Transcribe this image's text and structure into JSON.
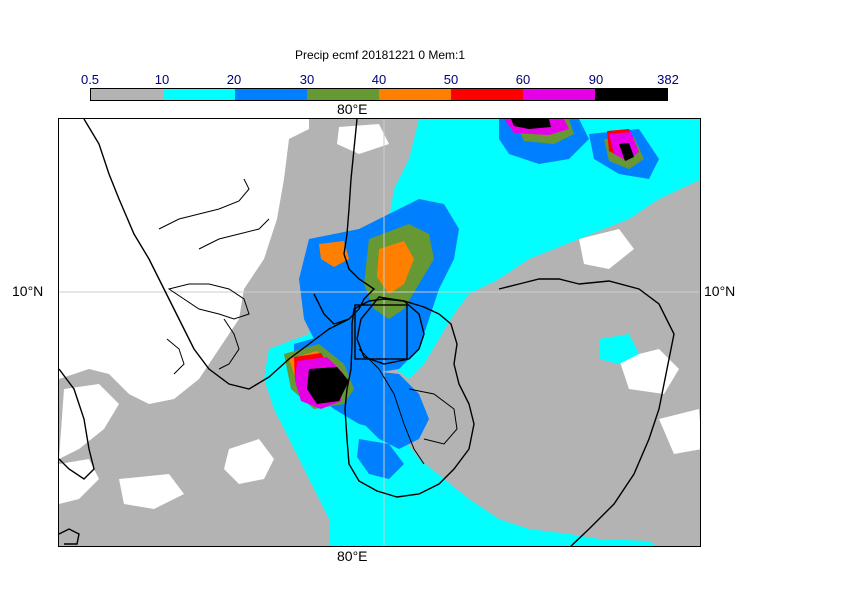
{
  "title": "Precip ecmf 20181221 0 Mem:1",
  "colorbar": {
    "labels": [
      "0.5",
      "10",
      "20",
      "30",
      "40",
      "50",
      "60",
      "90",
      "382"
    ],
    "colors": [
      "#b3b3b3",
      "#00ffff",
      "#0080ff",
      "#669933",
      "#ff8000",
      "#ff0000",
      "#e600e6",
      "#000000"
    ]
  },
  "axes": {
    "lon_top": "80°E",
    "lon_bottom": "80°E",
    "lat_left": "10°N",
    "lat_right": "10°N"
  }
}
